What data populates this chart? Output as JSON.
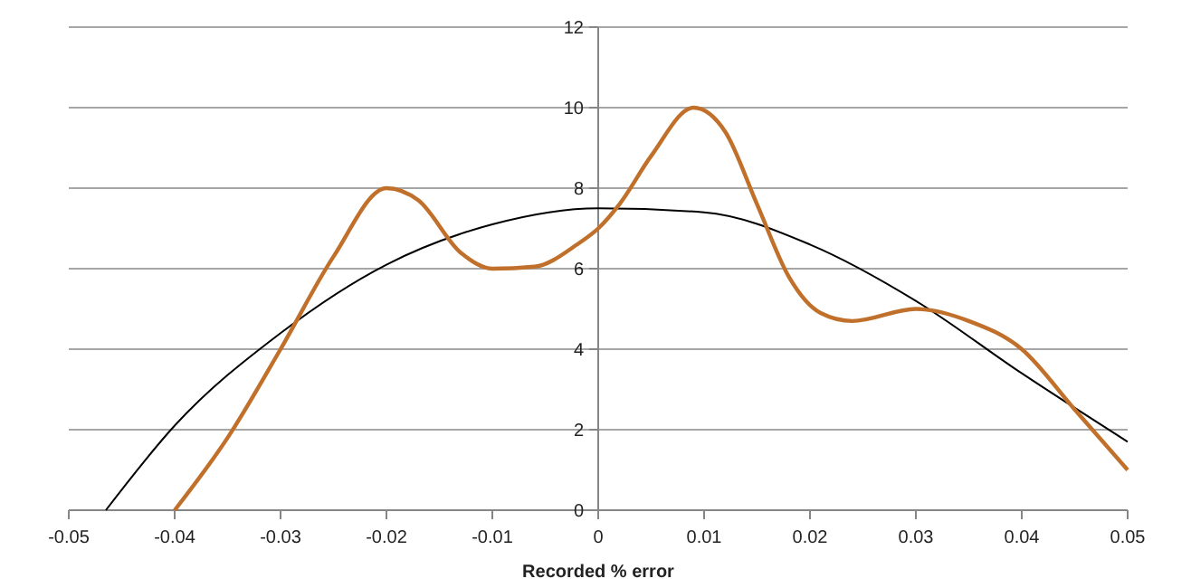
{
  "chart_data": {
    "type": "line",
    "xlabel": "Recorded % error",
    "xlim": [
      -0.05,
      0.05
    ],
    "xticks": [
      -0.05,
      -0.04,
      -0.03,
      -0.02,
      -0.01,
      0,
      0.01,
      0.02,
      0.03,
      0.04,
      0.05
    ],
    "ylim": [
      0,
      12
    ],
    "yticks": [
      0,
      2,
      4,
      6,
      8,
      10,
      12
    ],
    "grid": "y",
    "marker": "none",
    "line_style": "solid",
    "series": [
      {
        "color": "#000000",
        "x": [
          -0.0465,
          -0.04,
          -0.03,
          -0.02,
          -0.01,
          0,
          0.01,
          0.02,
          0.03,
          0.04,
          0.05
        ],
        "values": [
          0,
          2.1,
          4.4,
          6.1,
          7.1,
          7.5,
          7.4,
          6.6,
          5.2,
          3.4,
          1.7
        ]
      },
      {
        "color": "#c0702a",
        "x": [
          -0.04,
          -0.035,
          -0.03,
          -0.025,
          -0.02,
          -0.017,
          -0.013,
          -0.01,
          -0.006,
          -0.002,
          0,
          0.002,
          0.005,
          0.009,
          0.012,
          0.015,
          0.018,
          0.021,
          0.024,
          0.03,
          0.035,
          0.04,
          0.045,
          0.05
        ],
        "values": [
          0,
          1.8,
          4,
          6.3,
          8,
          7.7,
          6.4,
          6,
          6.05,
          6.6,
          7,
          7.6,
          8.8,
          10,
          9.4,
          7.6,
          5.8,
          4.9,
          4.7,
          5,
          4.7,
          4,
          2.5,
          1
        ]
      }
    ]
  }
}
